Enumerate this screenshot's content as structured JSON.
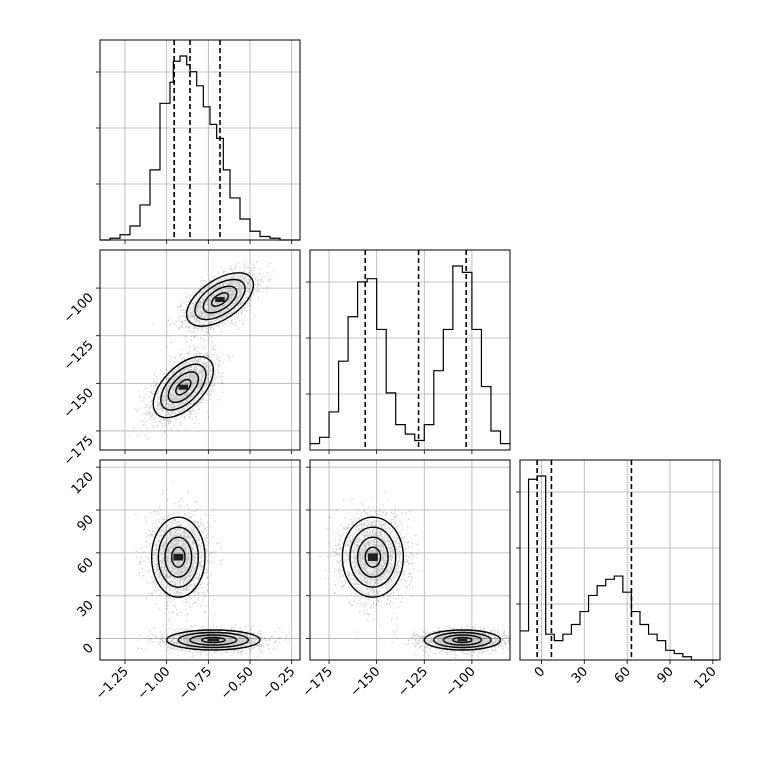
{
  "chart_data": {
    "type": "corner",
    "grid": true,
    "parameters": [
      {
        "ticks": [
          -1.25,
          -1.0,
          -0.75,
          -0.5,
          -0.25
        ],
        "tick_labels": [
          "−1.25",
          "−1.00",
          "−0.75",
          "−0.50",
          "−0.25"
        ],
        "range": [
          -1.4,
          -0.2
        ],
        "quantiles": [
          -0.955,
          -0.86,
          -0.68
        ],
        "histogram": {
          "bin_edges": [
            -1.4,
            -1.34,
            -1.28,
            -1.22,
            -1.16,
            -1.1,
            -1.04,
            -0.98,
            -0.96,
            -0.92,
            -0.88,
            -0.86,
            -0.82,
            -0.78,
            -0.74,
            -0.7,
            -0.66,
            -0.62,
            -0.56,
            -0.5,
            -0.44,
            -0.38,
            -0.32,
            -0.26,
            -0.2
          ],
          "counts": [
            0,
            1,
            3,
            8,
            20,
            40,
            78,
            90,
            102,
            105,
            100,
            96,
            88,
            76,
            66,
            58,
            40,
            24,
            12,
            5,
            2,
            1,
            0,
            0
          ]
        }
      },
      {
        "ticks": [
          -175,
          -150,
          -125,
          -100
        ],
        "tick_labels": [
          "−175",
          "−150",
          "−125",
          "−100"
        ],
        "range": [
          -185,
          -80
        ],
        "quantiles": [
          -156,
          -128,
          -103
        ],
        "histogram": {
          "bin_edges": [
            -185,
            -180,
            -175,
            -170,
            -165,
            -160,
            -155,
            -150,
            -145,
            -140,
            -135,
            -130,
            -125,
            -120,
            -115,
            -110,
            -105,
            -100,
            -95,
            -90,
            -85,
            -80
          ],
          "counts": [
            2,
            4,
            12,
            28,
            42,
            53,
            54,
            38,
            18,
            8,
            5,
            3,
            8,
            25,
            38,
            58,
            56,
            38,
            20,
            6,
            2
          ]
        }
      },
      {
        "ticks": [
          0,
          30,
          60,
          90,
          120
        ],
        "tick_labels": [
          "0",
          "30",
          "60",
          "90",
          "120"
        ],
        "range": [
          -15,
          125
        ],
        "quantiles": [
          -3,
          7,
          63
        ],
        "histogram": {
          "bin_edges": [
            -15,
            -9,
            -3,
            3,
            9,
            15,
            21,
            27,
            33,
            39,
            45,
            51,
            57,
            63,
            69,
            75,
            81,
            87,
            93,
            99,
            105,
            111,
            117,
            123
          ],
          "counts": [
            9,
            56,
            57,
            8,
            6,
            8,
            11,
            15,
            20,
            23,
            25,
            26,
            21,
            15,
            11,
            8,
            6,
            3,
            2,
            1,
            0,
            0,
            0
          ]
        }
      }
    ],
    "joint": [
      {
        "pair": [
          0,
          1
        ],
        "modes": [
          {
            "cx": -0.68,
            "cy": -106,
            "sx": 0.1,
            "sy": 7,
            "rho": 0.55,
            "n": 2200
          },
          {
            "cx": -0.9,
            "cy": -152,
            "sx": 0.09,
            "sy": 8,
            "rho": 0.55,
            "n": 2200
          }
        ]
      },
      {
        "pair": [
          0,
          2
        ],
        "modes": [
          {
            "cx": -0.93,
            "cy": 57,
            "sx": 0.08,
            "sy": 14,
            "rho": 0.0,
            "n": 2200
          },
          {
            "cx": -0.72,
            "cy": -1,
            "sx": 0.14,
            "sy": 3.5,
            "rho": 0.0,
            "n": 2200
          }
        ]
      },
      {
        "pair": [
          1,
          2
        ],
        "modes": [
          {
            "cx": -152,
            "cy": 57,
            "sx": 8,
            "sy": 14,
            "rho": 0.0,
            "n": 2200
          },
          {
            "cx": -105,
            "cy": -1,
            "sx": 10,
            "sy": 3.5,
            "rho": 0.0,
            "n": 2200
          }
        ]
      }
    ]
  }
}
